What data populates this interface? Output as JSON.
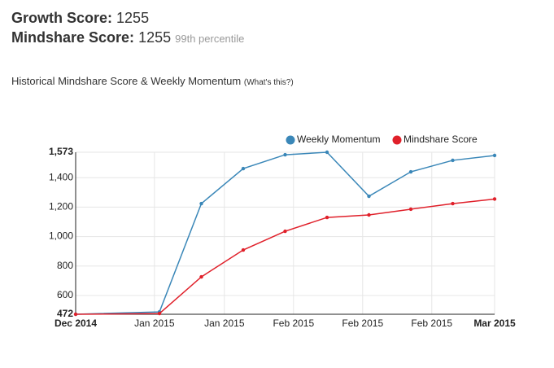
{
  "header": {
    "growth_label": "Growth Score:",
    "growth_value": "1255",
    "mindshare_label": "Mindshare Score:",
    "mindshare_value": "1255",
    "percentile": "99th percentile"
  },
  "subtitle": "Historical Mindshare Score & Weekly Momentum",
  "info_link": "(What's this?)",
  "chart_data": {
    "type": "line",
    "x": [
      0,
      2,
      3,
      4,
      5,
      6,
      7,
      8,
      9,
      10
    ],
    "xlim": [
      0,
      10
    ],
    "xticks": [
      {
        "value": 0,
        "label": "Dec 2014"
      },
      {
        "value": 1.88,
        "label": "Jan 2015"
      },
      {
        "value": 3.55,
        "label": "Jan 2015"
      },
      {
        "value": 5.2,
        "label": "Feb 2015"
      },
      {
        "value": 6.85,
        "label": "Feb 2015"
      },
      {
        "value": 8.5,
        "label": "Feb 2015"
      },
      {
        "value": 10,
        "label": "Mar 2015"
      }
    ],
    "ylim": [
      472,
      1573
    ],
    "yticks": [
      472,
      600,
      800,
      {
        "value": 1000,
        "label": "1,000"
      },
      {
        "value": 1200,
        "label": "1,200"
      },
      {
        "value": 1400,
        "label": "1,400"
      },
      {
        "value": 1573,
        "label": "1,573"
      }
    ],
    "grid": true,
    "legend": "top-right",
    "series": [
      {
        "name": "Weekly Momentum",
        "color": "#3a87b8",
        "values": [
          472,
          488,
          1224,
          1462,
          1556,
          1573,
          1274,
          1440,
          1518,
          1551
        ]
      },
      {
        "name": "Mindshare Score",
        "color": "#e0202a",
        "values": [
          472,
          477,
          726,
          909,
          1036,
          1130,
          1147,
          1186,
          1224,
          1255
        ]
      }
    ]
  }
}
